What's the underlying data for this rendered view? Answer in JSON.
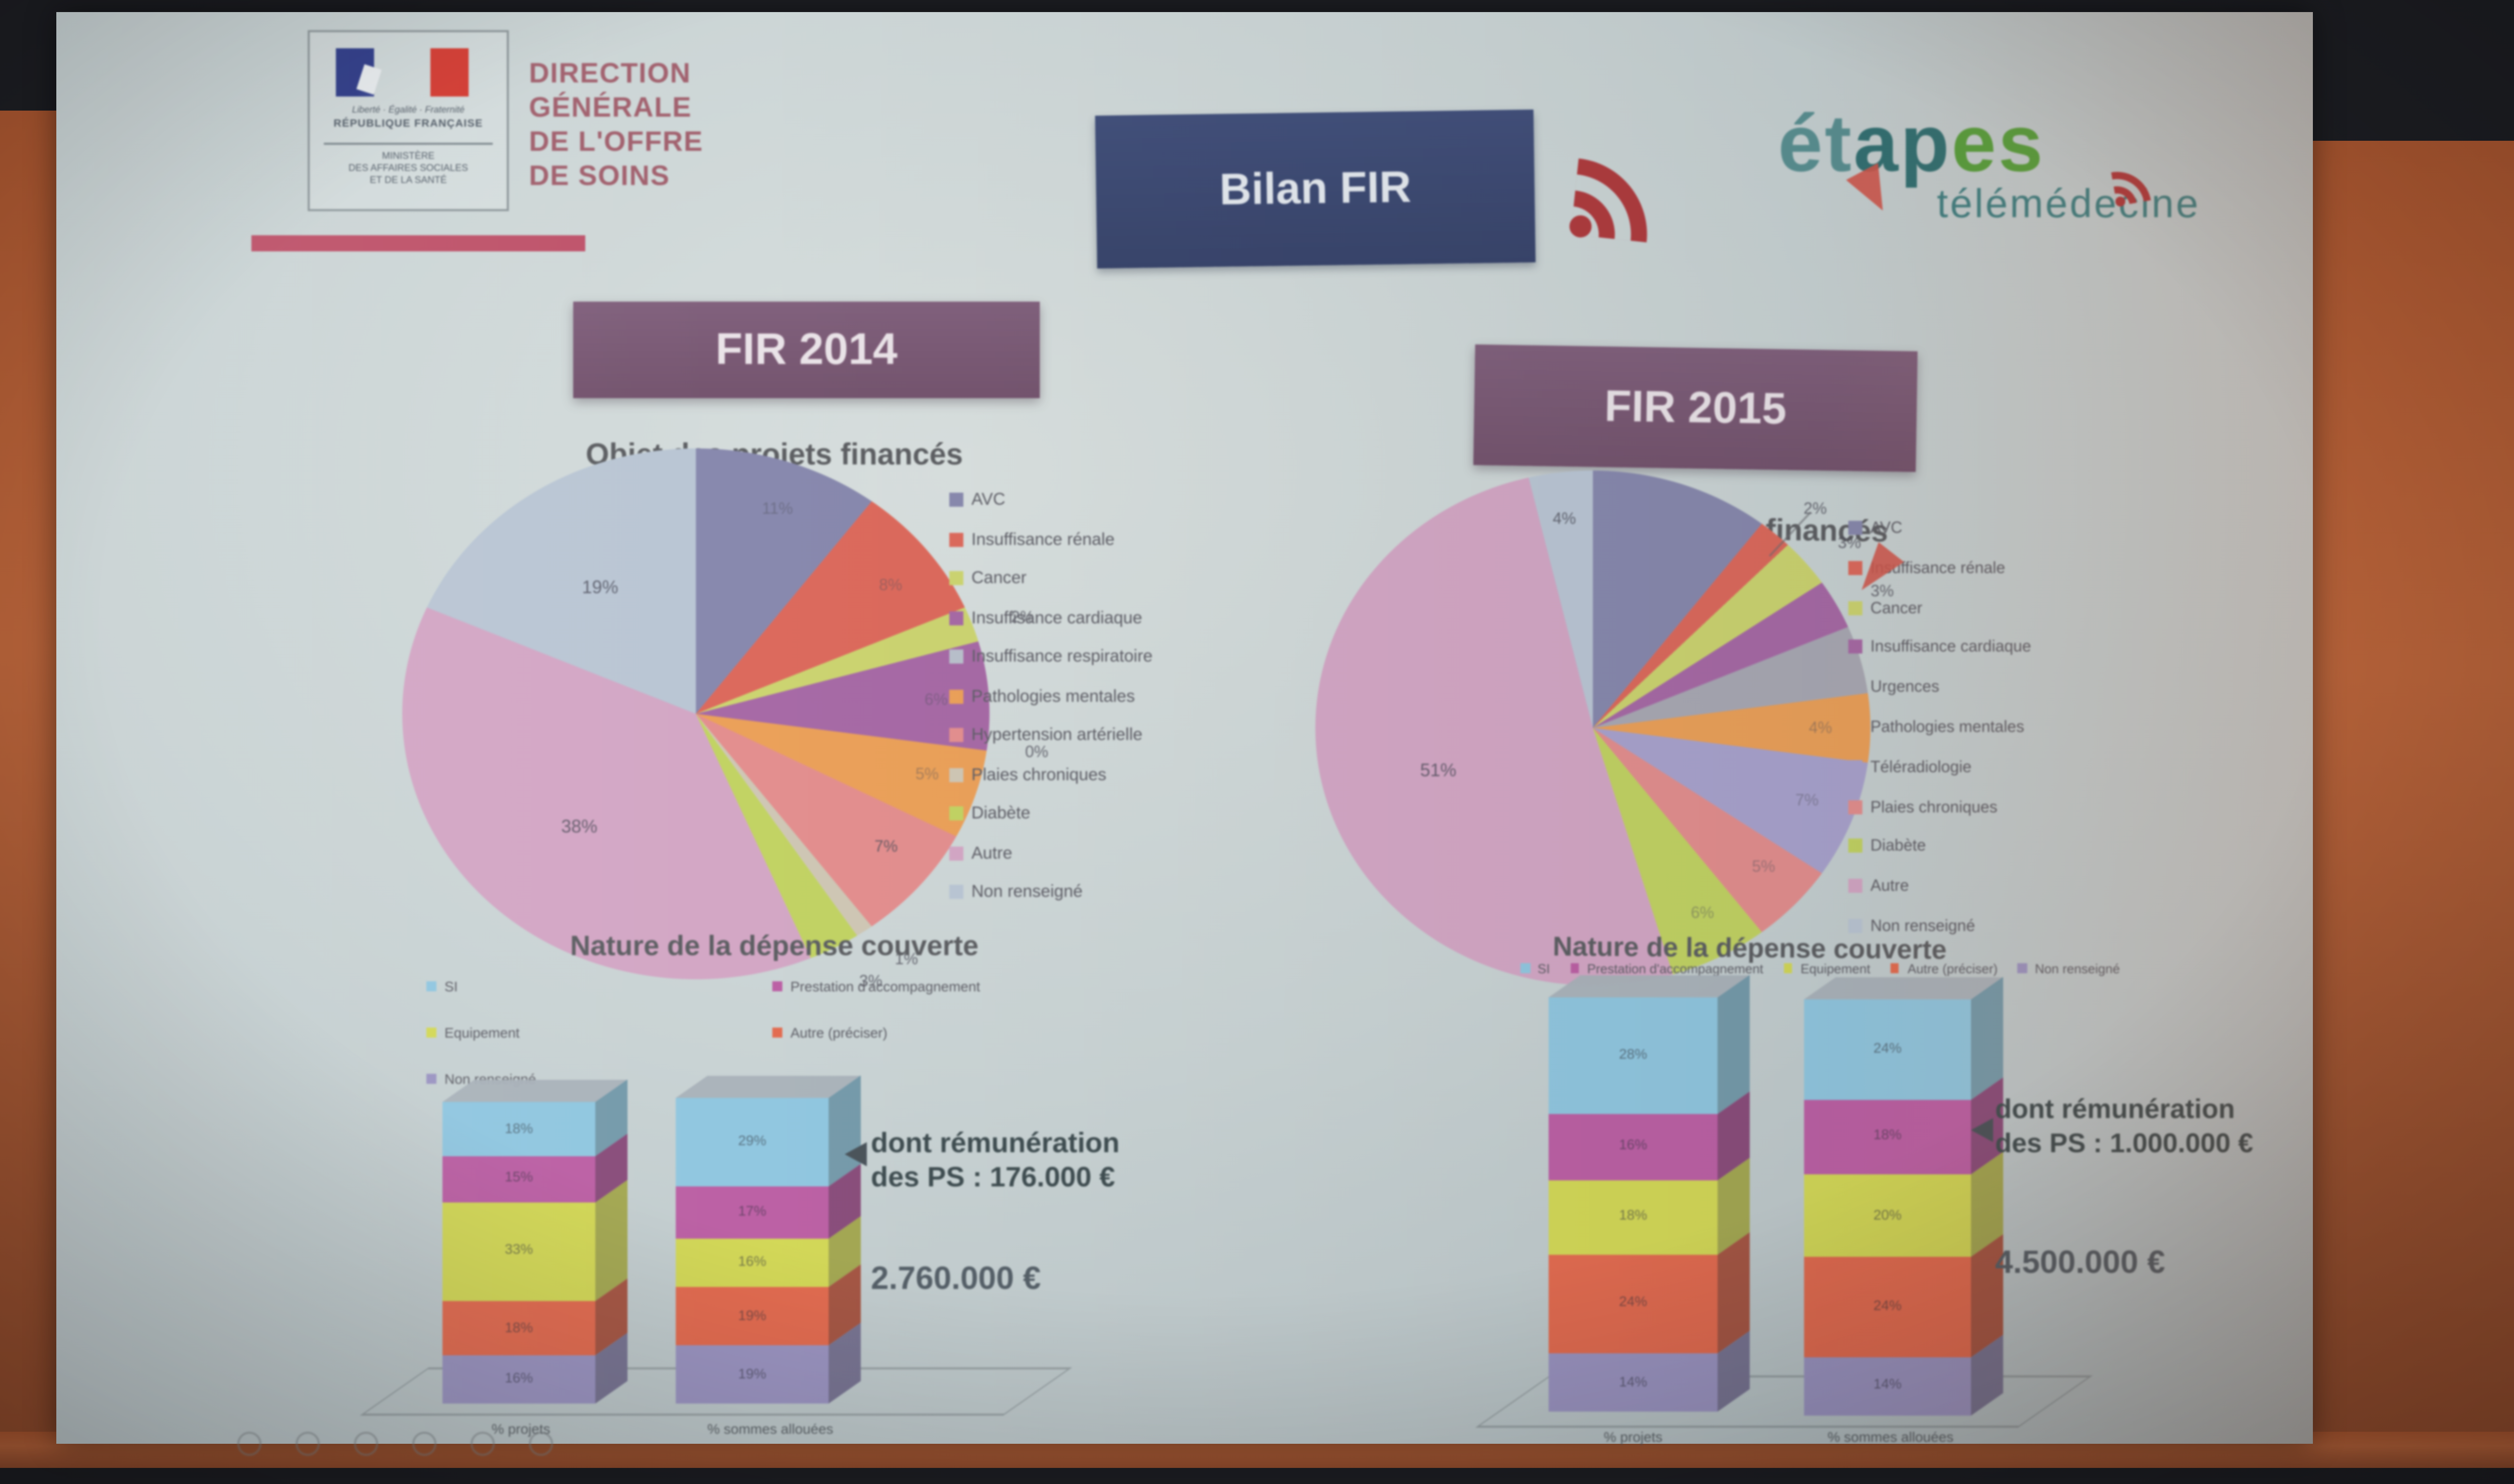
{
  "scene": {
    "wall_color": "#b26038",
    "backdrop_color": "#1c1d22"
  },
  "header": {
    "ministry_logo": {
      "motto": "Liberté · Égalité · Fraternité",
      "republic": "RÉPUBLIQUE FRANÇAISE",
      "ministry": "MINISTÈRE\nDES AFFAIRES SOCIALES\nET DE LA SANTÉ",
      "flag_blue": "#2e3c8e",
      "flag_red": "#dd3b31"
    },
    "org_title_lines": [
      "DIRECTION",
      "GÉNÉRALE",
      "DE L'OFFRE",
      "DE SOINS"
    ],
    "accent_color": "#c4526b",
    "banner_label": "Bilan FIR",
    "banner_bg": "#3c4a78",
    "rss_icon_color": "#b53a3e",
    "brand": {
      "part1": "ét",
      "part2": "ap",
      "part3": "es",
      "subtitle": "télémédecine",
      "teal": "#3d8184",
      "green": "#55a23a",
      "red": "#d6554a"
    }
  },
  "fir2014": {
    "banner": "FIR 2014",
    "pie_title": "Objet des projets financés",
    "pie_slices": [
      {
        "label": "AVC",
        "value": 11,
        "color": "#8889b0",
        "label_text": "11%",
        "label_pos": "in",
        "faint": true
      },
      {
        "label": "Insuffisance rénale",
        "value": 8,
        "color": "#e2695b",
        "label_text": "8%",
        "label_pos": "in",
        "faint": true
      },
      {
        "label": "Cancer",
        "value": 2,
        "color": "#ccd56b",
        "label_text": "2%",
        "label_pos": "out"
      },
      {
        "label": "Insuffisance cardiaque",
        "value": 6,
        "color": "#aa69a9",
        "label_text": "6%",
        "label_pos": "in",
        "faint": true
      },
      {
        "label": "Insuffisance respiratoire",
        "value": 0,
        "color": "#b9c0cc",
        "label_text": "0%",
        "label_pos": "out"
      },
      {
        "label": "Pathologies mentales",
        "value": 5,
        "color": "#efa055",
        "label_text": "5%",
        "label_pos": "in",
        "faint": true
      },
      {
        "label": "Hypertension artérielle",
        "value": 7,
        "color": "#e78e8e",
        "label_text": "7%",
        "label_pos": "in"
      },
      {
        "label": "Plaies chroniques",
        "value": 1,
        "color": "#cfc7b4",
        "label_text": "1%",
        "label_pos": "out"
      },
      {
        "label": "Diabète",
        "value": 3,
        "color": "#c2d45e",
        "label_text": "3%",
        "label_pos": "out"
      },
      {
        "label": "Autre",
        "value": 38,
        "color": "#d5a6c6",
        "label_text": "38%",
        "label_pos": "in",
        "big": true
      },
      {
        "label": "Non renseigné",
        "value": 19,
        "color": "#b9c6d5",
        "label_text": "19%",
        "label_pos": "in",
        "big": true
      }
    ],
    "legend": [
      {
        "label": "AVC",
        "color": "#8889b0"
      },
      {
        "label": "Insuffisance rénale",
        "color": "#e2695b"
      },
      {
        "label": "Cancer",
        "color": "#ccd56b"
      },
      {
        "label": "Insuffisance cardiaque",
        "color": "#aa69a9"
      },
      {
        "label": "Insuffisance respiratoire",
        "color": "#b9c0cc"
      },
      {
        "label": "Pathologies mentales",
        "color": "#efa055"
      },
      {
        "label": "Hypertension artérielle",
        "color": "#e78e8e"
      },
      {
        "label": "Plaies chroniques",
        "color": "#cfc7b4"
      },
      {
        "label": "Diabète",
        "color": "#c2d45e"
      },
      {
        "label": "Autre",
        "color": "#d5a6c6"
      },
      {
        "label": "Non renseigné",
        "color": "#b9c6d5"
      }
    ],
    "nature_title": "Nature de la dépense couverte",
    "nature_legend_col1": [
      {
        "label": "SI",
        "color": "#8ec8e2"
      },
      {
        "label": "Equipement",
        "color": "#d3d951"
      },
      {
        "label": "Non renseigné",
        "color": "#9c95c5"
      }
    ],
    "nature_legend_col2": [
      {
        "label": "Prestation d'accompagnement",
        "color": "#c05fa8"
      },
      {
        "label": "Autre (préciser)",
        "color": "#e96b4e"
      }
    ],
    "bars": [
      {
        "axis_label": "% projets",
        "segments": [
          {
            "name": "Non renseigné",
            "value": 16,
            "color": "#9c95c5"
          },
          {
            "name": "Autre (préciser)",
            "value": 18,
            "color": "#e96b4e"
          },
          {
            "name": "Equipement",
            "value": 33,
            "color": "#d3d951"
          },
          {
            "name": "Prestation d'accompagnement",
            "value": 15,
            "color": "#c05fa8"
          },
          {
            "name": "SI",
            "value": 18,
            "color": "#8ec8e2"
          }
        ]
      },
      {
        "axis_label": "% sommes allouées",
        "segments": [
          {
            "name": "Non renseigné",
            "value": 19,
            "color": "#9c95c5"
          },
          {
            "name": "Autre (préciser)",
            "value": 19,
            "color": "#e96b4e"
          },
          {
            "name": "Equipement",
            "value": 16,
            "color": "#d3d951"
          },
          {
            "name": "Prestation d'accompagnement",
            "value": 17,
            "color": "#c05fa8"
          },
          {
            "name": "SI",
            "value": 29,
            "color": "#8ec8e2"
          }
        ]
      }
    ],
    "annotation_line1": "dont rémunération",
    "annotation_line2": "des PS : 176.000 €",
    "annotation_total": "2.760.000 €"
  },
  "fir2015": {
    "banner": "FIR 2015",
    "pie_title": "Objet des projets financés",
    "pie_slices": [
      {
        "label": "AVC",
        "value": 11,
        "color": "#8889b0",
        "label_text": "",
        "label_pos": "none"
      },
      {
        "label": "Insuffisance rénale",
        "value": 2,
        "color": "#e2695b",
        "label_text": "2%",
        "label_pos": "out",
        "leader": true
      },
      {
        "label": "Cancer",
        "value": 3,
        "color": "#ccd56b",
        "label_text": "3%",
        "label_pos": "out"
      },
      {
        "label": "Insuffisance cardiaque",
        "value": 3,
        "color": "#aa69a9",
        "label_text": "3%",
        "label_pos": "out"
      },
      {
        "label": "Urgences",
        "value": 4,
        "color": "#a9a9b5",
        "label_text": "",
        "label_pos": "none"
      },
      {
        "label": "Pathologies mentales",
        "value": 4,
        "color": "#efa055",
        "label_text": "4%",
        "label_pos": "in",
        "faint": true
      },
      {
        "label": "Téléradiologie",
        "value": 7,
        "color": "#a9a3d0",
        "label_text": "7%",
        "label_pos": "in",
        "faint": true
      },
      {
        "label": "Plaies chroniques",
        "value": 5,
        "color": "#e78e8e",
        "label_text": "5%",
        "label_pos": "in",
        "faint": true
      },
      {
        "label": "Diabète",
        "value": 6,
        "color": "#c2d45e",
        "label_text": "6%",
        "label_pos": "in",
        "faint": true
      },
      {
        "label": "Autre",
        "value": 51,
        "color": "#d5a6c6",
        "label_text": "51%",
        "label_pos": "in",
        "big": true
      },
      {
        "label": "Non renseigné",
        "value": 4,
        "color": "#b9c6d5",
        "label_text": "4%",
        "label_pos": "in"
      }
    ],
    "legend": [
      {
        "label": "AVC",
        "color": "#8889b0"
      },
      {
        "label": "Insuffisance rénale",
        "color": "#e2695b"
      },
      {
        "label": "Cancer",
        "color": "#ccd56b"
      },
      {
        "label": "Insuffisance cardiaque",
        "color": "#aa69a9"
      },
      {
        "label": "Urgences",
        "color": "#a9a9b5"
      },
      {
        "label": "Pathologies mentales",
        "color": "#efa055"
      },
      {
        "label": "Téléradiologie",
        "color": "#a9a3d0"
      },
      {
        "label": "Plaies chroniques",
        "color": "#e78e8e"
      },
      {
        "label": "Diabète",
        "color": "#c2d45e"
      },
      {
        "label": "Autre",
        "color": "#d5a6c6"
      },
      {
        "label": "Non renseigné",
        "color": "#b9c6d5"
      }
    ],
    "nature_title": "Nature de la dépense couverte",
    "nature_legend_row": [
      {
        "label": "SI",
        "color": "#8ec8e2"
      },
      {
        "label": "Prestation d'accompagnement",
        "color": "#c05fa8"
      },
      {
        "label": "Equipement",
        "color": "#d3d951"
      },
      {
        "label": "Autre (préciser)",
        "color": "#e96b4e"
      },
      {
        "label": "Non renseigné",
        "color": "#9c95c5"
      }
    ],
    "bars": [
      {
        "axis_label": "% projets",
        "segments": [
          {
            "name": "Non renseigné",
            "value": 14,
            "color": "#9c95c5"
          },
          {
            "name": "Autre (préciser)",
            "value": 24,
            "color": "#e96b4e"
          },
          {
            "name": "Equipement",
            "value": 18,
            "color": "#d3d951"
          },
          {
            "name": "Prestation d'accompagnement",
            "value": 16,
            "color": "#c05fa8"
          },
          {
            "name": "SI",
            "value": 28,
            "color": "#8ec8e2"
          }
        ]
      },
      {
        "axis_label": "% sommes allouées",
        "segments": [
          {
            "name": "Non renseigné",
            "value": 14,
            "color": "#9c95c5"
          },
          {
            "name": "Autre (préciser)",
            "value": 24,
            "color": "#e96b4e"
          },
          {
            "name": "Equipement",
            "value": 20,
            "color": "#d3d951"
          },
          {
            "name": "Prestation d'accompagnement",
            "value": 18,
            "color": "#c05fa8"
          },
          {
            "name": "SI",
            "value": 24,
            "color": "#8ec8e2"
          }
        ]
      }
    ],
    "annotation_line1": "dont rémunération",
    "annotation_line2": "des PS : 1.000.000 €",
    "annotation_total": "4.500.000 €"
  },
  "chart_data": [
    {
      "type": "pie",
      "title": "FIR 2014 — Objet des projets financés",
      "labels": [
        "AVC",
        "Insuffisance rénale",
        "Cancer",
        "Insuffisance cardiaque",
        "Insuffisance respiratoire",
        "Pathologies mentales",
        "Hypertension artérielle",
        "Plaies chroniques",
        "Diabète",
        "Autre",
        "Non renseigné"
      ],
      "values": [
        11,
        8,
        2,
        6,
        0,
        5,
        7,
        1,
        3,
        38,
        19
      ],
      "legend_position": "right"
    },
    {
      "type": "pie",
      "title": "FIR 2015 — Objet des projets financés",
      "labels": [
        "AVC",
        "Insuffisance rénale",
        "Cancer",
        "Insuffisance cardiaque",
        "Urgences",
        "Pathologies mentales",
        "Téléradiologie",
        "Plaies chroniques",
        "Diabète",
        "Autre",
        "Non renseigné"
      ],
      "values": [
        11,
        2,
        3,
        3,
        4,
        4,
        7,
        5,
        6,
        51,
        4
      ],
      "legend_position": "right"
    },
    {
      "type": "bar",
      "stacked": true,
      "title": "FIR 2014 — Nature de la dépense couverte",
      "categories": [
        "% projets",
        "% sommes allouées"
      ],
      "series": [
        {
          "name": "SI",
          "values": [
            18,
            29
          ]
        },
        {
          "name": "Prestation d'accompagnement",
          "values": [
            15,
            17
          ]
        },
        {
          "name": "Equipement",
          "values": [
            33,
            16
          ]
        },
        {
          "name": "Autre (préciser)",
          "values": [
            18,
            19
          ]
        },
        {
          "name": "Non renseigné",
          "values": [
            16,
            19
          ]
        }
      ],
      "ylim": [
        0,
        100
      ],
      "annotations": [
        "dont rémunération des PS : 176.000 €",
        "2.760.000 €"
      ]
    },
    {
      "type": "bar",
      "stacked": true,
      "title": "FIR 2015 — Nature de la dépense couverte",
      "categories": [
        "% projets",
        "% sommes allouées"
      ],
      "series": [
        {
          "name": "SI",
          "values": [
            28,
            24
          ]
        },
        {
          "name": "Prestation d'accompagnement",
          "values": [
            16,
            18
          ]
        },
        {
          "name": "Equipement",
          "values": [
            18,
            20
          ]
        },
        {
          "name": "Autre (préciser)",
          "values": [
            24,
            24
          ]
        },
        {
          "name": "Non renseigné",
          "values": [
            14,
            14
          ]
        }
      ],
      "ylim": [
        0,
        100
      ],
      "annotations": [
        "dont rémunération des PS : 1.000.000 €",
        "4.500.000 €"
      ]
    }
  ]
}
